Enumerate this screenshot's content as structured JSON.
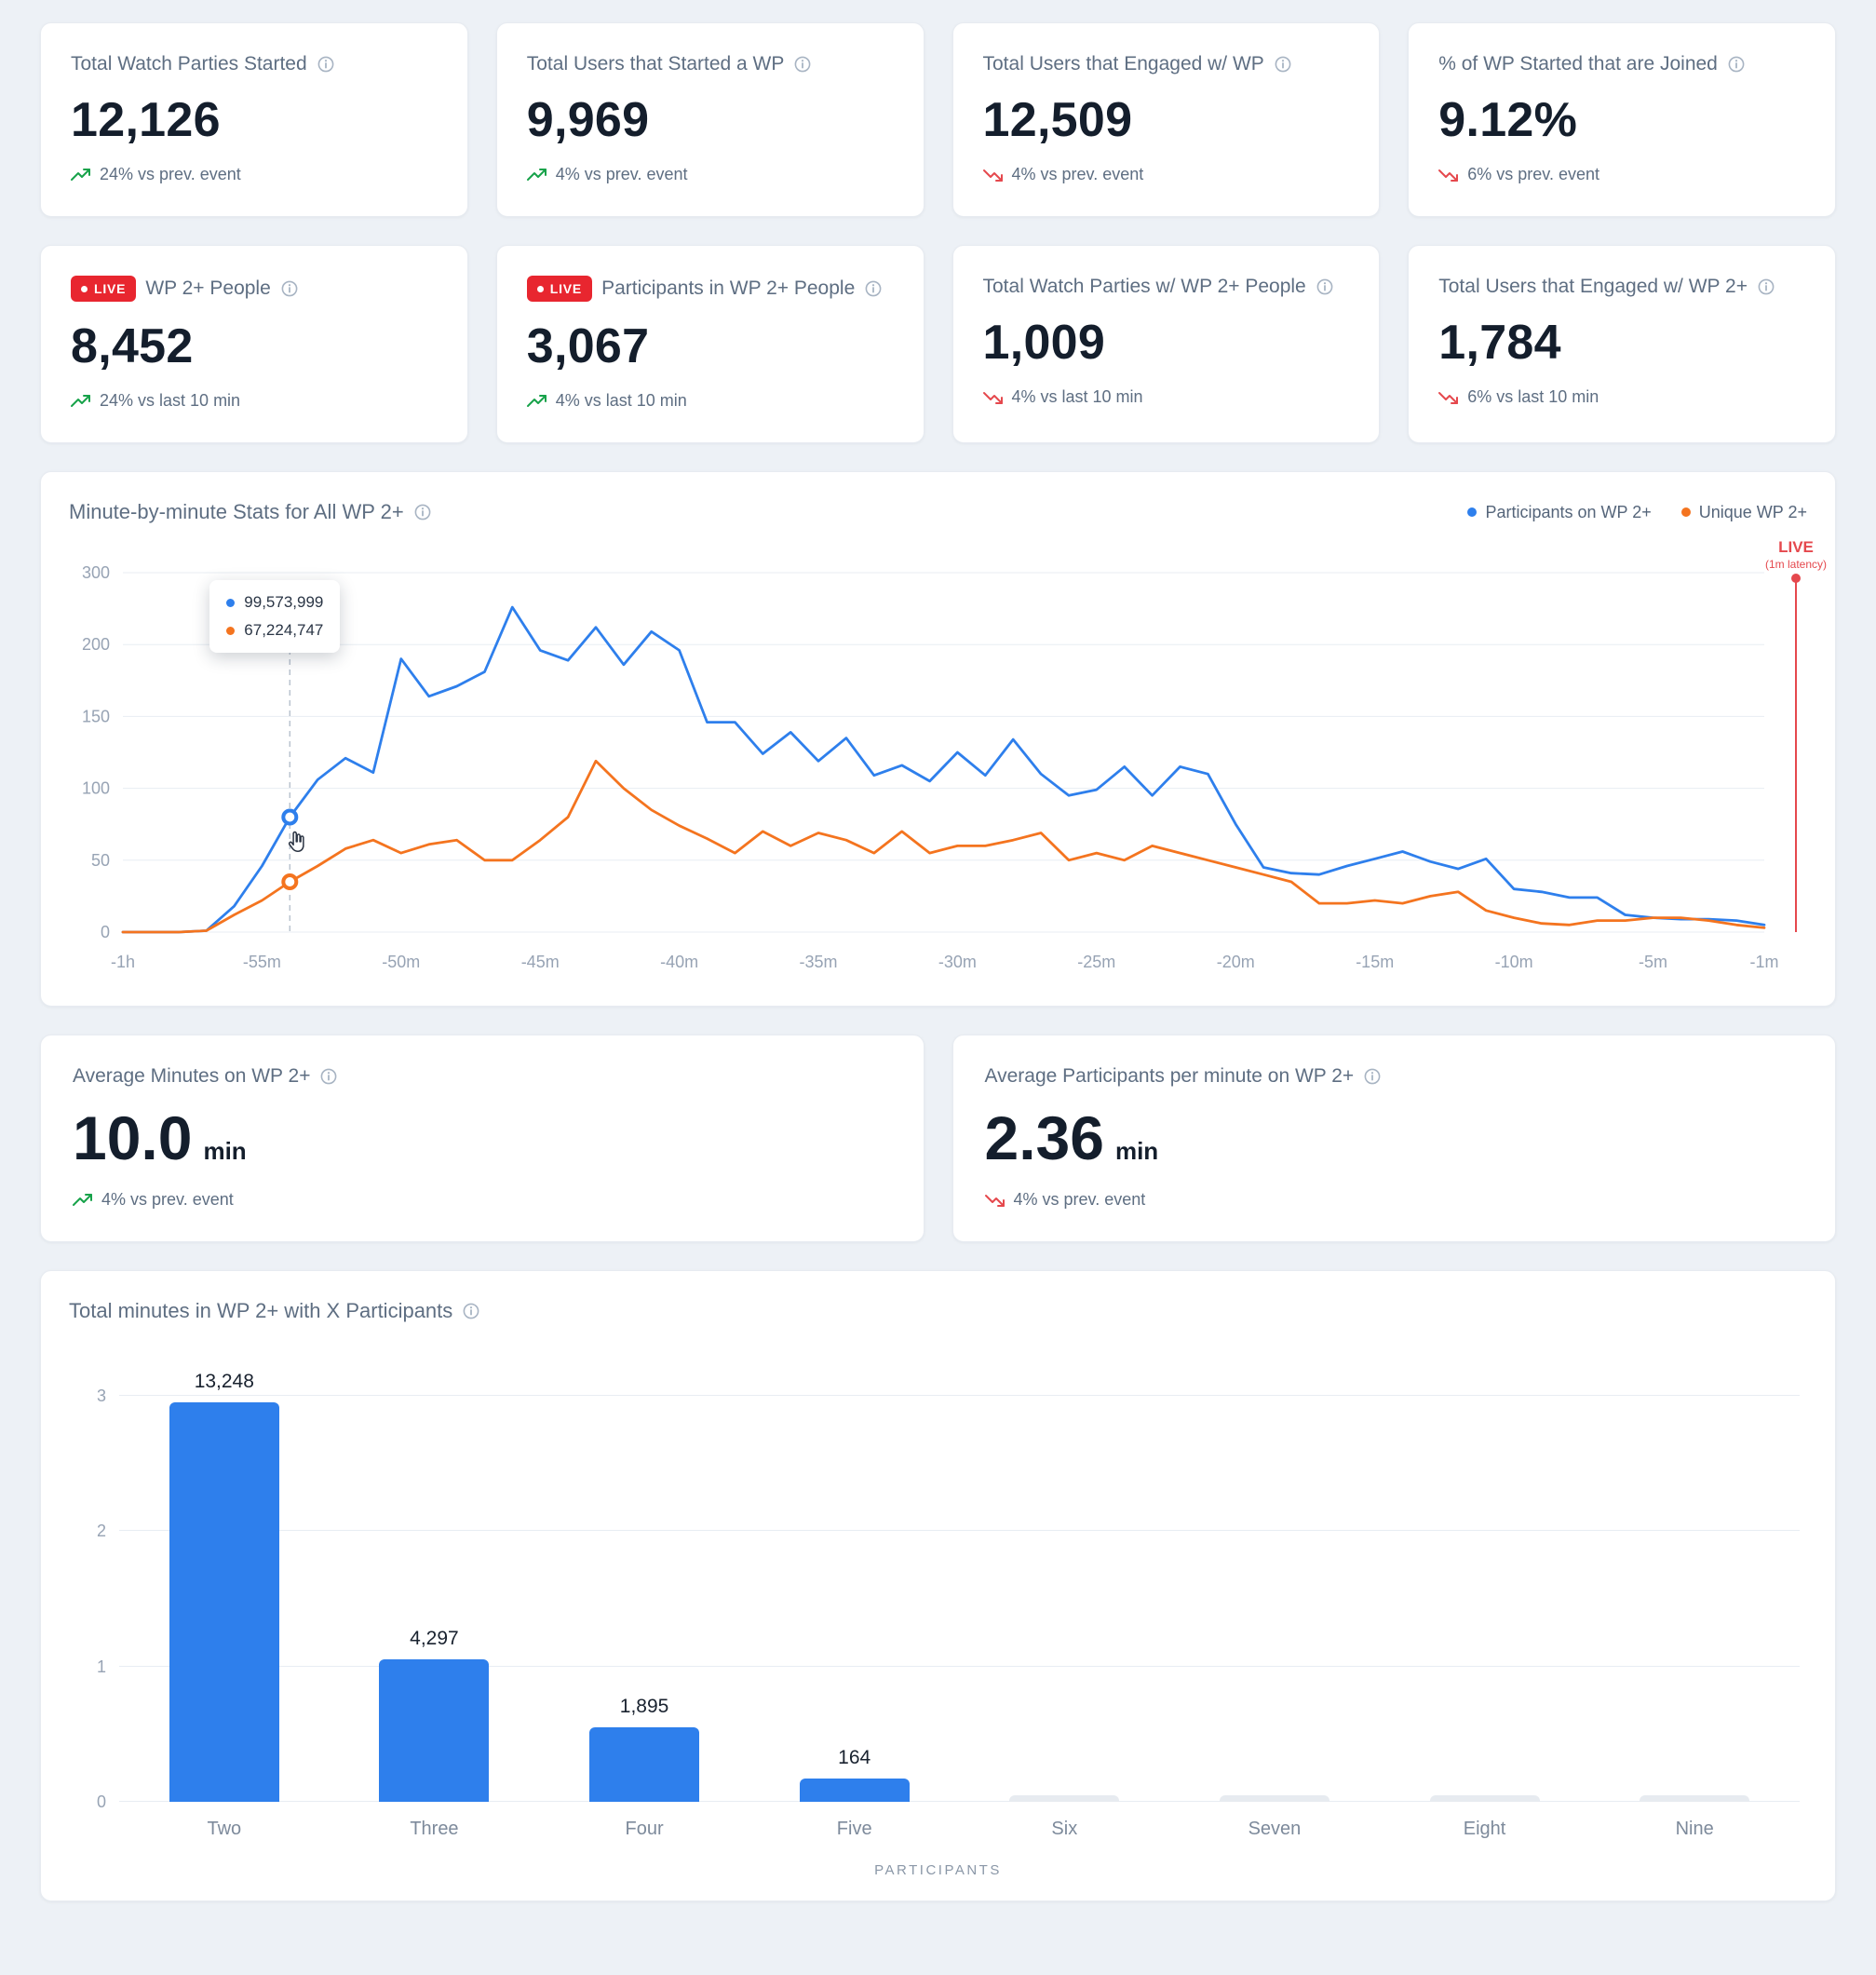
{
  "colors": {
    "background": "#edf1f6",
    "accent_blue": "#2e7fec",
    "accent_orange": "#f4741f",
    "positive_green": "#17a24a",
    "negative_red": "#e5484d",
    "live_red": "#e8262f",
    "bar_gray": "#e7ebf0"
  },
  "kpis": [
    {
      "title": "Total Watch Parties Started",
      "value": "12,126",
      "delta": {
        "dir": "up",
        "text": "24% vs prev. event"
      }
    },
    {
      "title": "Total Users that Started a WP",
      "value": "9,969",
      "delta": {
        "dir": "up",
        "text": "4% vs prev. event"
      }
    },
    {
      "title": "Total Users that Engaged w/ WP",
      "value": "12,509",
      "delta": {
        "dir": "down",
        "text": "4% vs prev. event"
      }
    },
    {
      "title": "% of WP Started that are Joined",
      "value": "9.12%",
      "delta": {
        "dir": "down",
        "text": "6% vs prev. event"
      }
    },
    {
      "badge": "LIVE",
      "title": "WP 2+ People",
      "value": "8,452",
      "delta": {
        "dir": "up",
        "text": "24% vs last 10 min"
      }
    },
    {
      "badge": "LIVE",
      "title": "Participants in WP 2+ People",
      "value": "3,067",
      "delta": {
        "dir": "up",
        "text": "4% vs last 10 min"
      }
    },
    {
      "title": "Total Watch Parties w/ WP 2+ People",
      "value": "1,009",
      "delta": {
        "dir": "down",
        "text": "4% vs last 10 min"
      }
    },
    {
      "title": "Total Users that Engaged w/ WP 2+",
      "value": "1,784",
      "delta": {
        "dir": "down",
        "text": "6% vs last 10 min"
      }
    }
  ],
  "averages": [
    {
      "title": "Average Minutes on WP 2+",
      "value": "10.0",
      "unit": "min",
      "delta": {
        "dir": "up",
        "text": "4% vs prev. event"
      }
    },
    {
      "title": "Average Participants per minute on WP 2+",
      "value": "2.36",
      "unit": "min",
      "delta": {
        "dir": "down",
        "text": "4% vs prev. event"
      }
    }
  ],
  "chart_data": [
    {
      "type": "line",
      "title": "Minute-by-minute Stats for All WP 2+",
      "legend": [
        {
          "label": "Participants on WP 2+",
          "color": "#2e7fec"
        },
        {
          "label": "Unique WP 2+",
          "color": "#f4741f"
        }
      ],
      "x_tick_labels": [
        "-1h",
        "-55m",
        "-50m",
        "-45m",
        "-40m",
        "-35m",
        "-30m",
        "-25m",
        "-20m",
        "-15m",
        "-10m",
        "-5m",
        "-1m"
      ],
      "x_tick_indices": [
        0,
        5,
        10,
        15,
        20,
        25,
        30,
        35,
        40,
        45,
        50,
        55,
        59
      ],
      "y_tick_labels": [
        "0",
        "50",
        "100",
        "150",
        "200",
        "300"
      ],
      "y_axis_max_units": 250,
      "grid": true,
      "legend_position": "top-right",
      "series": [
        {
          "name": "Participants on WP 2+",
          "color": "#2e7fec",
          "values": [
            0,
            0,
            0,
            1,
            18,
            46,
            80,
            106,
            121,
            111,
            190,
            164,
            171,
            181,
            226,
            196,
            189,
            212,
            186,
            209,
            196,
            146,
            146,
            124,
            139,
            119,
            135,
            109,
            116,
            105,
            125,
            109,
            134,
            110,
            95,
            99,
            115,
            95,
            115,
            110,
            75,
            45,
            41,
            40,
            46,
            51,
            56,
            49,
            44,
            51,
            30,
            28,
            24,
            24,
            12,
            10,
            9,
            9,
            8,
            5
          ]
        },
        {
          "name": "Unique WP 2+",
          "color": "#f4741f",
          "values": [
            0,
            0,
            0,
            1,
            12,
            22,
            35,
            46,
            58,
            64,
            55,
            61,
            64,
            50,
            50,
            64,
            80,
            119,
            100,
            85,
            74,
            65,
            55,
            70,
            60,
            69,
            64,
            55,
            70,
            55,
            60,
            60,
            64,
            69,
            50,
            55,
            50,
            60,
            55,
            50,
            45,
            40,
            35,
            20,
            20,
            22,
            20,
            25,
            28,
            15,
            10,
            6,
            5,
            8,
            8,
            10,
            10,
            8,
            5,
            3
          ]
        }
      ],
      "tooltip": {
        "x_index": 6,
        "rows": [
          {
            "color": "#2e7fec",
            "value": "99,573,999"
          },
          {
            "color": "#f4741f",
            "value": "67,224,747"
          }
        ]
      },
      "live_marker": {
        "label": "LIVE",
        "sublabel": "(1m latency)",
        "color": "#e5484d"
      }
    },
    {
      "type": "bar",
      "title": "Total minutes in WP 2+ with X Participants",
      "categories": [
        "Two",
        "Three",
        "Four",
        "Five",
        "Six",
        "Seven",
        "Eight",
        "Nine"
      ],
      "values": [
        13248,
        4297,
        1895,
        164,
        null,
        null,
        null,
        null
      ],
      "value_labels": [
        "13,248",
        "4,297",
        "1,895",
        "164",
        "",
        "",
        "",
        ""
      ],
      "bar_axis_heights": [
        2.95,
        1.05,
        0.55,
        0.17,
        0.05,
        0.05,
        0.05,
        0.05
      ],
      "bar_colors": [
        "blue",
        "blue",
        "blue",
        "blue",
        "gray",
        "gray",
        "gray",
        "gray"
      ],
      "y_tick_labels": [
        "0",
        "1",
        "2",
        "3"
      ],
      "ylim": [
        0,
        3.3
      ],
      "xlabel": "PARTICIPANTS",
      "grid": true
    }
  ]
}
